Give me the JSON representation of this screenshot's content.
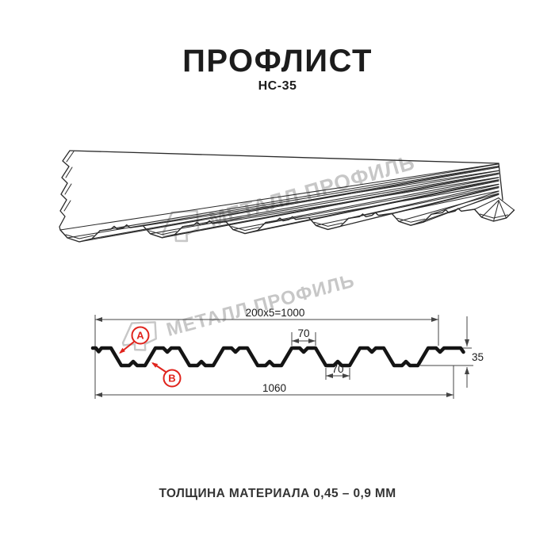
{
  "header": {
    "title": "ПРОФЛИСТ",
    "subtitle": "НС-35"
  },
  "watermark": {
    "text": "МЕТАЛЛ ПРОФИЛЬ",
    "color": "#c7c7c7"
  },
  "cross_section": {
    "dim_top_cover_width": "200x5=1000",
    "dim_overall_width": "1060",
    "dim_height": "35",
    "dim_crest_width": "70",
    "dim_valley_width": "70",
    "callout_a": "A",
    "callout_b": "B"
  },
  "footer": {
    "text": "ТОЛЩИНА МАТЕРИАЛА 0,45 – 0,9 ММ"
  },
  "colors": {
    "accent": "#e0231c",
    "line": "#1a1a1a",
    "dim_line": "#444444"
  }
}
